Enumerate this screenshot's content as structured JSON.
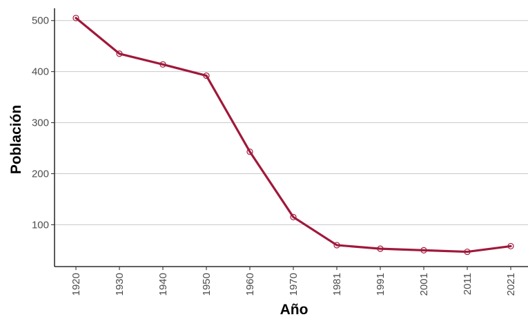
{
  "chart_data": {
    "type": "line",
    "title": "",
    "xlabel": "Año",
    "ylabel": "Población",
    "categories": [
      "1920",
      "1930",
      "1940",
      "1950",
      "1960",
      "1970",
      "1981",
      "1991",
      "2001",
      "2011",
      "2021"
    ],
    "series": [
      {
        "values": [
          505,
          435,
          414,
          392,
          243,
          115,
          60,
          53,
          50,
          47,
          58
        ],
        "color": "#a0183a"
      }
    ],
    "yticks": [
      100,
      200,
      300,
      400,
      500
    ],
    "ylim": [
      18,
      524
    ],
    "grid": "horizontal",
    "legend": "none",
    "markers": "open-circle"
  }
}
